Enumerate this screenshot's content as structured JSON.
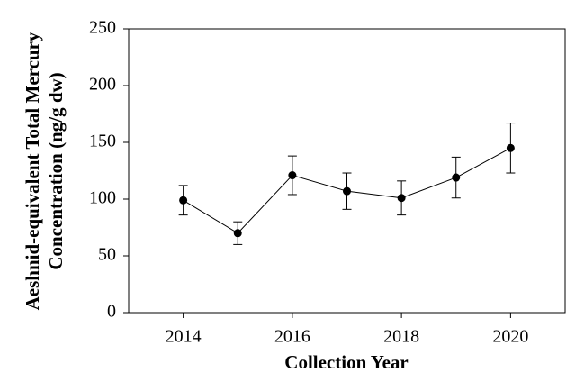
{
  "chart_data": {
    "type": "line",
    "xlabel": "Collection Year",
    "ylabel": [
      "Aeshnid-equivalent Total Mercury",
      "Concentration (ng/g dw)"
    ],
    "x": [
      2014,
      2015,
      2016,
      2017,
      2018,
      2019,
      2020
    ],
    "series": [
      {
        "color": "#000000",
        "values": [
          99,
          70,
          121,
          107,
          101,
          119,
          145
        ],
        "errors": [
          13,
          10,
          17,
          16,
          15,
          18,
          22
        ]
      }
    ],
    "xlim": [
      2013,
      2021
    ],
    "xticks": [
      2014,
      2016,
      2018,
      2020
    ],
    "ylim": [
      0,
      250
    ],
    "yticks": [
      0,
      50,
      100,
      150,
      200,
      250
    ],
    "grid": false
  }
}
